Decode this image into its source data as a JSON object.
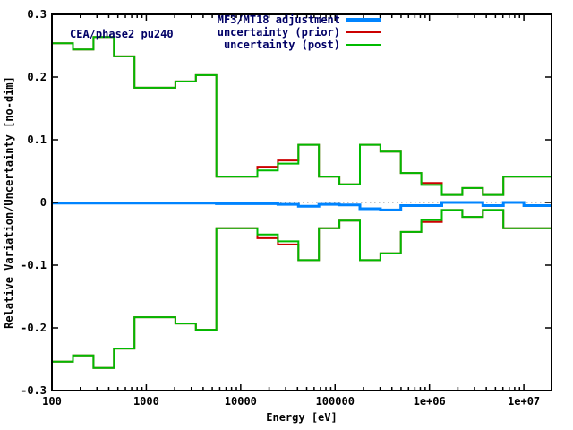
{
  "chart_data": {
    "type": "line",
    "subtype": "step-histogram",
    "x_scale": "log",
    "grid": "off",
    "legend_position": "top-right-inside",
    "title_label": "CEA/phase2 pu240",
    "xlabel": "Energy [eV]",
    "ylabel": "Relative Variation/Uncertainty [no-dim]",
    "xlim": [
      100,
      19640000
    ],
    "ylim": [
      -0.3,
      0.3
    ],
    "x_tick_values": [
      100,
      1000,
      10000,
      100000,
      1000000,
      10000000
    ],
    "x_tick_labels": [
      "100",
      "1000",
      "10000",
      "100000",
      "1e+06",
      "1e+07"
    ],
    "y_tick_values": [
      0.3,
      0.2,
      0.1,
      0,
      -0.1,
      -0.2,
      -0.3
    ],
    "y_tick_labels": [
      "0.3",
      "0.2",
      "0.1",
      "0",
      "-0.1",
      "-0.2",
      "-0.3"
    ],
    "zero_line": {
      "style": "dotted",
      "color": "#888888",
      "y": 0
    },
    "group_boundaries_eV": [
      101.3,
      167.0,
      275.4,
      454.0,
      748.5,
      1234.1,
      2034.7,
      3354.6,
      5530.8,
      9118.8,
      15034,
      24788,
      40868,
      67379,
      111090,
      183160,
      301970,
      497870,
      820850,
      1353400,
      2231300,
      3678800,
      6065300,
      10000000,
      19640000
    ],
    "series": [
      {
        "name": "MF3/MT18 adjustment",
        "color": "#0084ff",
        "width": 3,
        "mirrored": false,
        "values": [
          -0.001,
          -0.001,
          -0.001,
          -0.001,
          -0.001,
          -0.001,
          -0.001,
          -0.001,
          -0.002,
          -0.002,
          -0.002,
          -0.003,
          -0.006,
          -0.003,
          -0.004,
          -0.01,
          -0.012,
          -0.005,
          -0.005,
          0.0,
          0.0,
          -0.005,
          0.0,
          -0.005
        ]
      },
      {
        "name": "uncertainty (prior)",
        "color": "#cc0000",
        "width": 2,
        "mirrored": true,
        "values": [
          0.254,
          0.244,
          0.264,
          0.233,
          0.183,
          0.183,
          0.193,
          0.203,
          0.041,
          0.041,
          0.057,
          0.067,
          0.092,
          0.041,
          0.029,
          0.092,
          0.081,
          0.047,
          0.031,
          0.012,
          0.023,
          0.012,
          0.041,
          0.041
        ]
      },
      {
        "name": "uncertainty (post)",
        "color": "#00bb00",
        "width": 2,
        "mirrored": true,
        "values": [
          0.254,
          0.244,
          0.264,
          0.233,
          0.183,
          0.183,
          0.193,
          0.203,
          0.041,
          0.041,
          0.051,
          0.062,
          0.092,
          0.041,
          0.029,
          0.092,
          0.081,
          0.047,
          0.028,
          0.012,
          0.023,
          0.012,
          0.041,
          0.041
        ]
      }
    ],
    "text_colors": {
      "title_and_legend": "#000066",
      "axes": "#000000"
    }
  }
}
